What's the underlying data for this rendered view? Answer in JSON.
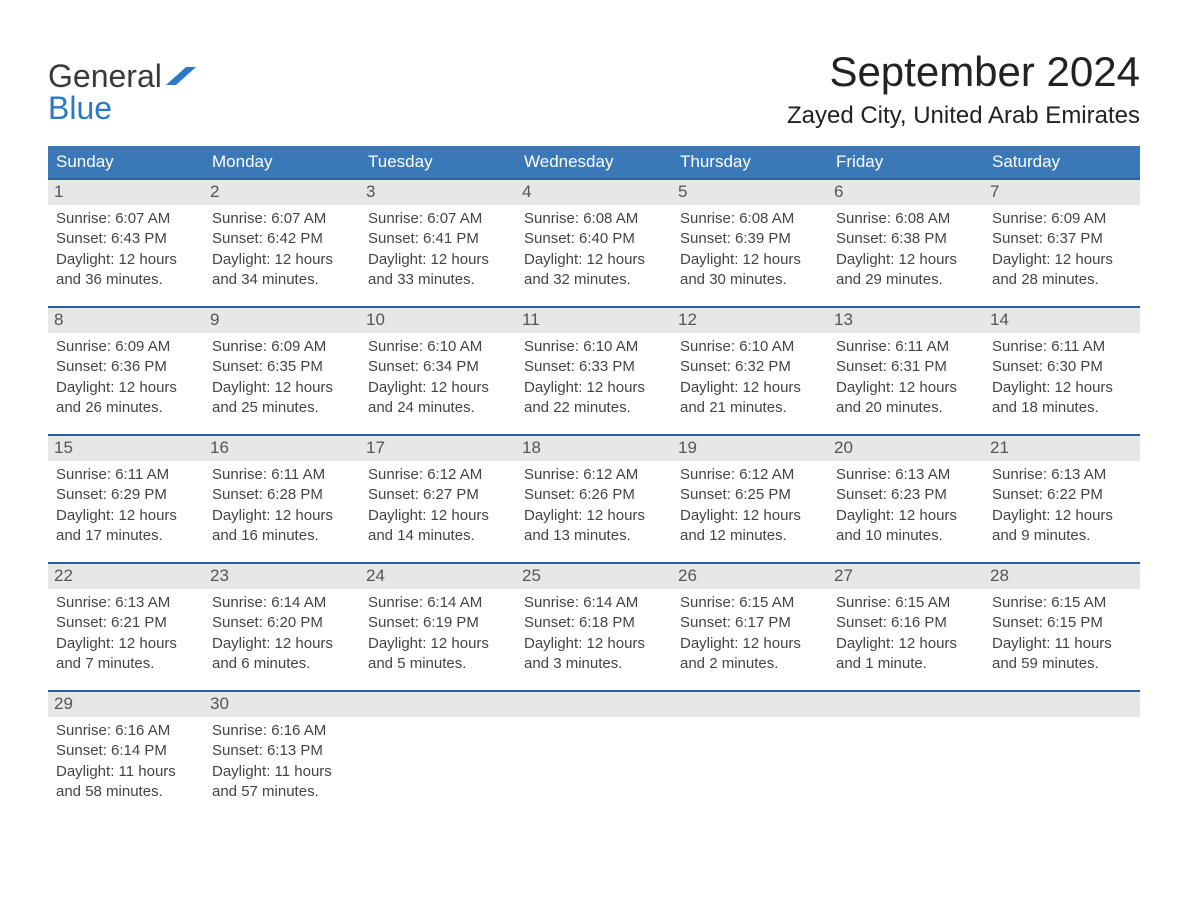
{
  "brand": {
    "part1": "General",
    "part2": "Blue"
  },
  "title": {
    "month": "September 2024",
    "location": "Zayed City, United Arab Emirates"
  },
  "colors": {
    "header_blue": "#3b78b8",
    "header_border": "#2b5f9e",
    "daynum_bg": "#e7e7e7",
    "brand_blue": "#2b78c6",
    "brand_dark": "#3a3a3a",
    "page_bg": "#ffffff"
  },
  "typography": {
    "month_fontsize_pt": 32,
    "location_fontsize_pt": 18,
    "dayheader_fontsize_pt": 13,
    "body_fontsize_pt": 11
  },
  "calendar": {
    "type": "table",
    "columns": [
      "Sunday",
      "Monday",
      "Tuesday",
      "Wednesday",
      "Thursday",
      "Friday",
      "Saturday"
    ],
    "weeks": [
      [
        {
          "day": "1",
          "sunrise": "Sunrise: 6:07 AM",
          "sunset": "Sunset: 6:43 PM",
          "daylight": "Daylight: 12 hours and 36 minutes."
        },
        {
          "day": "2",
          "sunrise": "Sunrise: 6:07 AM",
          "sunset": "Sunset: 6:42 PM",
          "daylight": "Daylight: 12 hours and 34 minutes."
        },
        {
          "day": "3",
          "sunrise": "Sunrise: 6:07 AM",
          "sunset": "Sunset: 6:41 PM",
          "daylight": "Daylight: 12 hours and 33 minutes."
        },
        {
          "day": "4",
          "sunrise": "Sunrise: 6:08 AM",
          "sunset": "Sunset: 6:40 PM",
          "daylight": "Daylight: 12 hours and 32 minutes."
        },
        {
          "day": "5",
          "sunrise": "Sunrise: 6:08 AM",
          "sunset": "Sunset: 6:39 PM",
          "daylight": "Daylight: 12 hours and 30 minutes."
        },
        {
          "day": "6",
          "sunrise": "Sunrise: 6:08 AM",
          "sunset": "Sunset: 6:38 PM",
          "daylight": "Daylight: 12 hours and 29 minutes."
        },
        {
          "day": "7",
          "sunrise": "Sunrise: 6:09 AM",
          "sunset": "Sunset: 6:37 PM",
          "daylight": "Daylight: 12 hours and 28 minutes."
        }
      ],
      [
        {
          "day": "8",
          "sunrise": "Sunrise: 6:09 AM",
          "sunset": "Sunset: 6:36 PM",
          "daylight": "Daylight: 12 hours and 26 minutes."
        },
        {
          "day": "9",
          "sunrise": "Sunrise: 6:09 AM",
          "sunset": "Sunset: 6:35 PM",
          "daylight": "Daylight: 12 hours and 25 minutes."
        },
        {
          "day": "10",
          "sunrise": "Sunrise: 6:10 AM",
          "sunset": "Sunset: 6:34 PM",
          "daylight": "Daylight: 12 hours and 24 minutes."
        },
        {
          "day": "11",
          "sunrise": "Sunrise: 6:10 AM",
          "sunset": "Sunset: 6:33 PM",
          "daylight": "Daylight: 12 hours and 22 minutes."
        },
        {
          "day": "12",
          "sunrise": "Sunrise: 6:10 AM",
          "sunset": "Sunset: 6:32 PM",
          "daylight": "Daylight: 12 hours and 21 minutes."
        },
        {
          "day": "13",
          "sunrise": "Sunrise: 6:11 AM",
          "sunset": "Sunset: 6:31 PM",
          "daylight": "Daylight: 12 hours and 20 minutes."
        },
        {
          "day": "14",
          "sunrise": "Sunrise: 6:11 AM",
          "sunset": "Sunset: 6:30 PM",
          "daylight": "Daylight: 12 hours and 18 minutes."
        }
      ],
      [
        {
          "day": "15",
          "sunrise": "Sunrise: 6:11 AM",
          "sunset": "Sunset: 6:29 PM",
          "daylight": "Daylight: 12 hours and 17 minutes."
        },
        {
          "day": "16",
          "sunrise": "Sunrise: 6:11 AM",
          "sunset": "Sunset: 6:28 PM",
          "daylight": "Daylight: 12 hours and 16 minutes."
        },
        {
          "day": "17",
          "sunrise": "Sunrise: 6:12 AM",
          "sunset": "Sunset: 6:27 PM",
          "daylight": "Daylight: 12 hours and 14 minutes."
        },
        {
          "day": "18",
          "sunrise": "Sunrise: 6:12 AM",
          "sunset": "Sunset: 6:26 PM",
          "daylight": "Daylight: 12 hours and 13 minutes."
        },
        {
          "day": "19",
          "sunrise": "Sunrise: 6:12 AM",
          "sunset": "Sunset: 6:25 PM",
          "daylight": "Daylight: 12 hours and 12 minutes."
        },
        {
          "day": "20",
          "sunrise": "Sunrise: 6:13 AM",
          "sunset": "Sunset: 6:23 PM",
          "daylight": "Daylight: 12 hours and 10 minutes."
        },
        {
          "day": "21",
          "sunrise": "Sunrise: 6:13 AM",
          "sunset": "Sunset: 6:22 PM",
          "daylight": "Daylight: 12 hours and 9 minutes."
        }
      ],
      [
        {
          "day": "22",
          "sunrise": "Sunrise: 6:13 AM",
          "sunset": "Sunset: 6:21 PM",
          "daylight": "Daylight: 12 hours and 7 minutes."
        },
        {
          "day": "23",
          "sunrise": "Sunrise: 6:14 AM",
          "sunset": "Sunset: 6:20 PM",
          "daylight": "Daylight: 12 hours and 6 minutes."
        },
        {
          "day": "24",
          "sunrise": "Sunrise: 6:14 AM",
          "sunset": "Sunset: 6:19 PM",
          "daylight": "Daylight: 12 hours and 5 minutes."
        },
        {
          "day": "25",
          "sunrise": "Sunrise: 6:14 AM",
          "sunset": "Sunset: 6:18 PM",
          "daylight": "Daylight: 12 hours and 3 minutes."
        },
        {
          "day": "26",
          "sunrise": "Sunrise: 6:15 AM",
          "sunset": "Sunset: 6:17 PM",
          "daylight": "Daylight: 12 hours and 2 minutes."
        },
        {
          "day": "27",
          "sunrise": "Sunrise: 6:15 AM",
          "sunset": "Sunset: 6:16 PM",
          "daylight": "Daylight: 12 hours and 1 minute."
        },
        {
          "day": "28",
          "sunrise": "Sunrise: 6:15 AM",
          "sunset": "Sunset: 6:15 PM",
          "daylight": "Daylight: 11 hours and 59 minutes."
        }
      ],
      [
        {
          "day": "29",
          "sunrise": "Sunrise: 6:16 AM",
          "sunset": "Sunset: 6:14 PM",
          "daylight": "Daylight: 11 hours and 58 minutes."
        },
        {
          "day": "30",
          "sunrise": "Sunrise: 6:16 AM",
          "sunset": "Sunset: 6:13 PM",
          "daylight": "Daylight: 11 hours and 57 minutes."
        },
        null,
        null,
        null,
        null,
        null
      ]
    ]
  }
}
